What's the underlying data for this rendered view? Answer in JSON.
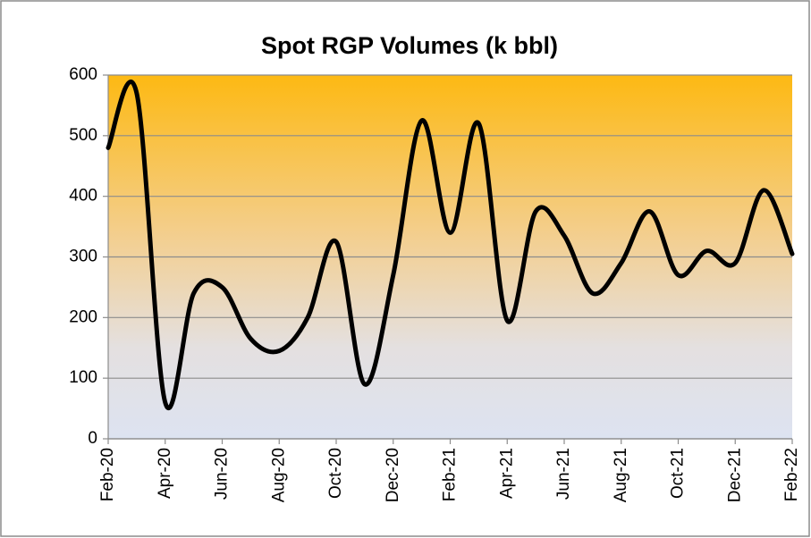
{
  "chart_data": {
    "type": "line",
    "title": "Spot RGP Volumes (k bbl)",
    "categories": [
      "Feb-20",
      null,
      "Apr-20",
      null,
      "Jun-20",
      null,
      "Aug-20",
      null,
      "Oct-20",
      null,
      "Dec-20",
      null,
      "Feb-21",
      null,
      "Apr-21",
      null,
      "Jun-21",
      null,
      "Aug-21",
      null,
      "Oct-21",
      null,
      "Dec-21",
      null,
      "Feb-22"
    ],
    "series": [
      {
        "name": "Spot RGP Volumes",
        "color": "#000000",
        "values": [
          480,
          570,
          60,
          240,
          250,
          165,
          145,
          200,
          325,
          90,
          270,
          525,
          340,
          520,
          195,
          375,
          335,
          240,
          290,
          375,
          270,
          310,
          290,
          410,
          305
        ]
      }
    ],
    "ylim": [
      0,
      600
    ],
    "yticks": [
      0,
      100,
      200,
      300,
      400,
      500,
      600
    ],
    "grid": true,
    "smooth": true
  }
}
